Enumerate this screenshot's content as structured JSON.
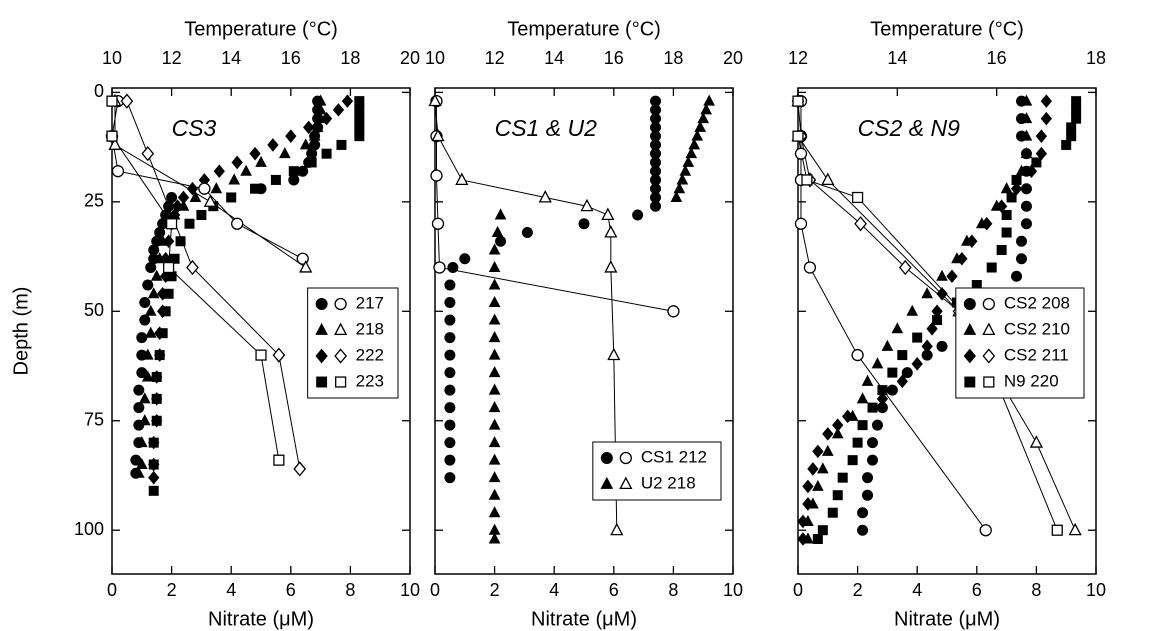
{
  "chart_data": [
    {
      "type": "profile",
      "panel_label": "CS3",
      "x_label": "Nitrate (μM)",
      "x2_label": "Temperature (°C)",
      "y_label": "Depth (m)",
      "xlim": [
        0,
        10
      ],
      "xticks": [
        0,
        2,
        4,
        6,
        8,
        10
      ],
      "x2lim": [
        10,
        20
      ],
      "x2ticks": [
        10,
        12,
        14,
        16,
        18,
        20
      ],
      "ylim": [
        110,
        -1
      ],
      "yticks": [
        0,
        25,
        50,
        75,
        100
      ],
      "legend_position": "center right",
      "series": [
        {
          "name": "217",
          "marker": "circle",
          "color": "#000000",
          "temperature": {
            "depth": [
              2,
              4,
              6,
              8,
              10,
              12,
              14,
              16,
              18,
              20,
              22,
              24,
              26,
              28,
              30,
              32,
              34,
              36,
              38,
              40,
              44,
              48,
              52,
              56,
              60,
              64,
              68,
              72,
              76,
              80,
              84,
              87
            ],
            "values": [
              16.9,
              16.9,
              16.9,
              16.9,
              16.8,
              16.8,
              16.7,
              16.6,
              16.4,
              16.1,
              15.0,
              12.0,
              11.9,
              11.8,
              11.7,
              11.6,
              11.5,
              11.4,
              11.4,
              11.3,
              11.2,
              11.1,
              11.1,
              11.0,
              11.0,
              11.0,
              10.9,
              10.9,
              10.9,
              10.9,
              10.8,
              10.8
            ]
          },
          "nitrate": {
            "depth": [
              2,
              10,
              18,
              22,
              30,
              38
            ],
            "values": [
              0.2,
              0.0,
              0.2,
              3.1,
              4.2,
              6.4
            ]
          }
        },
        {
          "name": "218",
          "marker": "triangle",
          "color": "#000000",
          "temperature": {
            "depth": [
              2,
              4,
              6,
              8,
              10,
              12,
              14,
              16,
              18,
              20,
              22,
              24,
              26,
              28,
              30,
              34,
              38,
              42,
              46,
              50,
              55,
              60,
              65,
              70,
              75,
              80,
              85,
              87
            ],
            "values": [
              17.0,
              17.0,
              17.0,
              16.9,
              16.8,
              16.5,
              15.8,
              15.0,
              14.5,
              14.1,
              13.5,
              12.8,
              12.4,
              12.1,
              11.9,
              11.7,
              11.6,
              11.5,
              11.4,
              11.3,
              11.3,
              11.2,
              11.2,
              11.1,
              11.1,
              11.0,
              11.0,
              10.9
            ]
          },
          "nitrate": {
            "depth": [
              2,
              12,
              25,
              40
            ],
            "values": [
              0.1,
              0.1,
              3.3,
              6.5
            ]
          }
        },
        {
          "name": "222",
          "marker": "diamond",
          "color": "#000000",
          "temperature": {
            "depth": [
              2,
              4,
              6,
              8,
              10,
              12,
              14,
              16,
              18,
              20,
              22,
              24,
              26,
              28,
              30,
              34,
              38,
              42,
              46,
              50,
              55,
              60,
              65,
              70,
              75,
              80,
              85,
              88
            ],
            "values": [
              17.9,
              17.6,
              17.2,
              16.6,
              16.0,
              15.4,
              14.8,
              14.2,
              13.6,
              13.1,
              12.7,
              12.4,
              12.2,
              12.1,
              12.0,
              11.9,
              11.8,
              11.8,
              11.7,
              11.7,
              11.6,
              11.6,
              11.5,
              11.5,
              11.5,
              11.4,
              11.4,
              11.4
            ]
          },
          "nitrate": {
            "depth": [
              2,
              14,
              40,
              60,
              86
            ],
            "values": [
              0.5,
              1.2,
              2.7,
              5.6,
              6.3
            ]
          }
        },
        {
          "name": "223",
          "marker": "square",
          "color": "#000000",
          "temperature": {
            "depth": [
              2,
              4,
              6,
              8,
              10,
              12,
              14,
              16,
              18,
              20,
              22,
              24,
              26,
              28,
              30,
              34,
              38,
              42,
              46,
              50,
              55,
              60,
              65,
              70,
              75,
              80,
              85,
              91
            ],
            "values": [
              18.3,
              18.3,
              18.3,
              18.3,
              18.3,
              17.7,
              17.2,
              16.7,
              16.1,
              15.5,
              14.8,
              14.0,
              13.4,
              13.0,
              12.6,
              12.3,
              12.1,
              12.0,
              11.9,
              11.8,
              11.7,
              11.6,
              11.5,
              11.5,
              11.5,
              11.4,
              11.4,
              11.4
            ]
          },
          "nitrate": {
            "depth": [
              2,
              10,
              30,
              40,
              60,
              84
            ],
            "values": [
              0.0,
              0.0,
              2.0,
              1.9,
              5.0,
              5.6
            ]
          }
        }
      ]
    },
    {
      "type": "profile",
      "panel_label": "CS1 & U2",
      "x_label": "Nitrate (μM)",
      "x2_label": "Temperature (°C)",
      "xlim": [
        0,
        10
      ],
      "xticks": [
        0,
        2,
        4,
        6,
        8,
        10
      ],
      "x2lim": [
        10,
        20
      ],
      "x2ticks": [
        10,
        12,
        14,
        16,
        18,
        20
      ],
      "ylim": [
        110,
        -1
      ],
      "yticks": [
        0,
        25,
        50,
        75,
        100
      ],
      "legend_position": "lower right",
      "series": [
        {
          "name": "CS1 212",
          "marker": "circle",
          "color": "#000000",
          "temperature": {
            "depth": [
              2,
              4,
              6,
              8,
              10,
              12,
              14,
              16,
              18,
              20,
              22,
              24,
              26,
              28,
              30,
              32,
              34,
              38,
              40,
              44,
              48,
              52,
              56,
              60,
              64,
              68,
              72,
              76,
              80,
              84,
              88
            ],
            "values": [
              17.4,
              17.4,
              17.4,
              17.4,
              17.4,
              17.4,
              17.4,
              17.4,
              17.4,
              17.4,
              17.4,
              17.4,
              17.4,
              16.8,
              15.0,
              13.1,
              12.2,
              11.0,
              10.6,
              10.5,
              10.5,
              10.5,
              10.5,
              10.5,
              10.5,
              10.5,
              10.5,
              10.5,
              10.5,
              10.5,
              10.5
            ]
          },
          "nitrate": {
            "depth": [
              2,
              10,
              19,
              30,
              40,
              50
            ],
            "values": [
              0.05,
              0.05,
              0.05,
              0.1,
              0.15,
              8.0
            ]
          }
        },
        {
          "name": "U2 218",
          "marker": "triangle",
          "color": "#000000",
          "temperature": {
            "depth": [
              2,
              4,
              6,
              8,
              10,
              12,
              14,
              16,
              18,
              20,
              22,
              24,
              28,
              32,
              36,
              40,
              44,
              48,
              52,
              56,
              60,
              64,
              68,
              72,
              76,
              80,
              84,
              88,
              92,
              96,
              100,
              102
            ],
            "values": [
              19.2,
              19.1,
              19.0,
              18.9,
              18.8,
              18.7,
              18.6,
              18.5,
              18.4,
              18.3,
              18.2,
              18.1,
              12.2,
              12.1,
              12.0,
              12.0,
              12.0,
              12.0,
              12.0,
              12.0,
              12.0,
              12.0,
              12.0,
              12.0,
              12.0,
              12.0,
              12.0,
              12.0,
              12.0,
              12.0,
              12.0,
              12.0
            ]
          },
          "nitrate": {
            "depth": [
              2,
              10,
              20,
              24,
              26,
              28,
              32,
              40,
              60,
              100
            ],
            "values": [
              0.0,
              0.1,
              0.9,
              3.7,
              5.1,
              5.8,
              5.9,
              5.9,
              6.0,
              6.1
            ]
          }
        }
      ]
    },
    {
      "type": "profile",
      "panel_label": "CS2 & N9",
      "x_label": "Nitrate (μM)",
      "x2_label": "Temperature (°C)",
      "xlim": [
        0,
        10
      ],
      "xticks": [
        0,
        2,
        4,
        6,
        8,
        10
      ],
      "x2lim": [
        12,
        18
      ],
      "x2ticks": [
        12,
        14,
        16,
        18
      ],
      "ylim": [
        110,
        -1
      ],
      "yticks": [
        0,
        25,
        50,
        75,
        100
      ],
      "legend_position": "center right",
      "series": [
        {
          "name": "CS2 208",
          "marker": "circle",
          "color": "#000000",
          "temperature": {
            "depth": [
              2,
              6,
              10,
              14,
              18,
              22,
              26,
              30,
              34,
              38,
              42,
              46,
              50,
              54,
              56,
              58,
              60,
              64,
              68,
              72,
              76,
              80,
              84,
              88,
              92,
              96,
              100
            ],
            "values": [
              16.5,
              16.5,
              16.5,
              16.6,
              16.6,
              16.6,
              16.6,
              16.6,
              16.5,
              16.5,
              16.4,
              16.3,
              16.1,
              15.6,
              15.3,
              14.9,
              14.6,
              14.2,
              13.9,
              13.7,
              13.6,
              13.5,
              13.5,
              13.4,
              13.4,
              13.3,
              13.3
            ]
          },
          "nitrate": {
            "depth": [
              2,
              10,
              14,
              20,
              30,
              40,
              60,
              100
            ],
            "values": [
              0.1,
              0.1,
              0.1,
              0.1,
              0.1,
              0.4,
              2.0,
              6.3
            ]
          }
        },
        {
          "name": "CS2 210",
          "marker": "triangle",
          "color": "#000000",
          "temperature": {
            "depth": [
              2,
              6,
              10,
              14,
              18,
              22,
              26,
              30,
              34,
              38,
              42,
              46,
              50,
              54,
              58,
              62,
              66,
              70,
              74,
              78,
              82,
              86,
              90,
              94,
              98,
              102
            ],
            "values": [
              16.6,
              16.6,
              16.6,
              16.6,
              16.5,
              16.2,
              16.0,
              15.7,
              15.4,
              15.2,
              14.9,
              14.6,
              14.3,
              14.0,
              13.8,
              13.6,
              13.4,
              13.3,
              13.1,
              12.8,
              12.6,
              12.5,
              12.4,
              12.3,
              12.2,
              12.2
            ]
          },
          "nitrate": {
            "depth": [
              2,
              10,
              20,
              50,
              80,
              100
            ],
            "values": [
              0.0,
              0.0,
              1.0,
              5.4,
              8.0,
              9.3
            ]
          }
        },
        {
          "name": "CS2 211",
          "marker": "diamond",
          "color": "#000000",
          "temperature": {
            "depth": [
              2,
              6,
              10,
              14,
              18,
              22,
              26,
              30,
              34,
              38,
              42,
              46,
              50,
              54,
              58,
              62,
              66,
              70,
              74,
              76,
              78,
              82,
              86,
              90,
              94,
              98,
              102
            ],
            "values": [
              17.0,
              17.0,
              16.9,
              16.9,
              16.7,
              16.4,
              16.1,
              15.8,
              15.5,
              15.3,
              15.1,
              14.9,
              14.8,
              14.7,
              14.6,
              14.4,
              14.1,
              13.7,
              13.0,
              12.8,
              12.6,
              12.4,
              12.3,
              12.2,
              12.2,
              12.1,
              12.1
            ]
          },
          "nitrate": {
            "depth": [
              2,
              10,
              20,
              30,
              40,
              50
            ],
            "values": [
              0.0,
              0.1,
              0.4,
              2.1,
              3.6,
              5.4
            ]
          }
        },
        {
          "name": "N9 220",
          "marker": "square",
          "color": "#000000",
          "temperature": {
            "depth": [
              2,
              4,
              6,
              8,
              10,
              12,
              16,
              20,
              24,
              28,
              32,
              36,
              40,
              44,
              48,
              52,
              56,
              60,
              64,
              68,
              72,
              76,
              80,
              84,
              88,
              92,
              96,
              100,
              102
            ],
            "values": [
              17.6,
              17.6,
              17.6,
              17.5,
              17.5,
              17.4,
              16.8,
              16.4,
              16.3,
              16.2,
              16.2,
              16.1,
              15.9,
              15.6,
              15.2,
              14.8,
              14.4,
              14.1,
              13.9,
              13.7,
              13.5,
              13.3,
              13.2,
              13.1,
              12.9,
              12.8,
              12.7,
              12.5,
              12.4
            ]
          },
          "nitrate": {
            "depth": [
              2,
              10,
              20,
              24,
              50,
              60,
              100
            ],
            "values": [
              0.0,
              0.0,
              0.3,
              2.0,
              5.5,
              6.3,
              8.7
            ]
          }
        }
      ]
    }
  ]
}
